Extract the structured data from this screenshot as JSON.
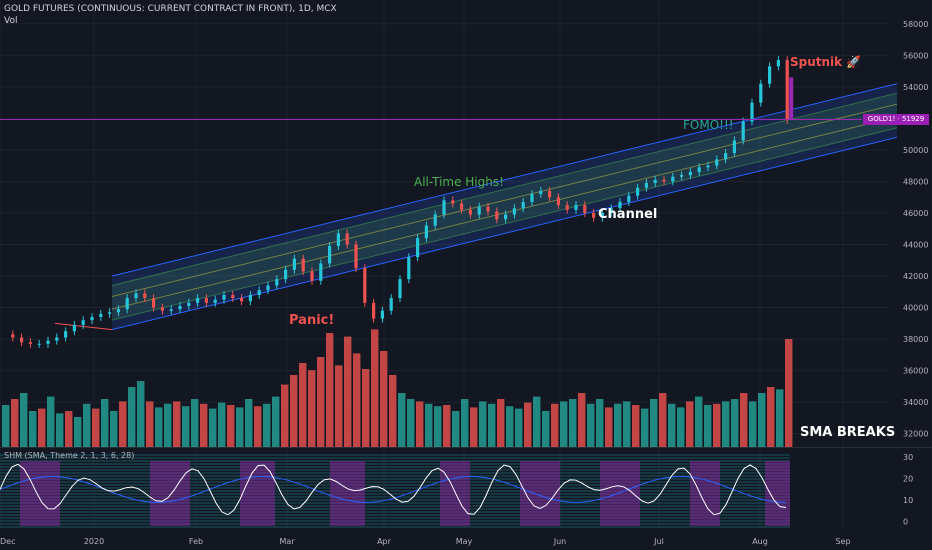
{
  "header": {
    "title": "GOLD FUTURES (CONTINUOUS: CURRENT CONTRACT IN FRONT), 1D, MCX",
    "vol_label": "Vol",
    "indicator_label": "SHM (SMA, Theme 2, 1, 3, 6, 28)"
  },
  "price_tag": {
    "text": "GOLD1! · 51929",
    "color": "#9c1fb5"
  },
  "annotations": {
    "panic": "Panic!",
    "all_time_highs": "All-Time Highs!",
    "channel": "Channel",
    "fomo": "FOMO!!!",
    "sputnik": "Sputnik 🚀",
    "sma_breaks": "SMA BREAKS"
  },
  "colors": {
    "background": "#131722",
    "bull": "#26c6da",
    "bear": "#ef5350",
    "highlight": "#9c27b0",
    "vol_bull": "#26a69a",
    "vol_bear": "#ef5350",
    "channel_edge": "#2962ff"
  },
  "chart_data": [
    {
      "type": "candlestick",
      "title": "GOLD FUTURES (CONTINUOUS: CURRENT CONTRACT IN FRONT), 1D, MCX",
      "x_ticks": [
        "Dec",
        "2020",
        "Feb",
        "Mar",
        "Apr",
        "May",
        "Jun",
        "Jul",
        "Aug",
        "Sep"
      ],
      "y_ticks": [
        32000,
        34000,
        36000,
        38000,
        40000,
        42000,
        44000,
        46000,
        48000,
        50000,
        52000,
        54000,
        56000,
        58000
      ],
      "ylim": [
        31000,
        59000
      ],
      "close_series": [
        [
          0,
          38300
        ],
        [
          4,
          38100
        ],
        [
          8,
          37800
        ],
        [
          12,
          37700
        ],
        [
          16,
          37700
        ],
        [
          20,
          37900
        ],
        [
          24,
          38100
        ],
        [
          28,
          38500
        ],
        [
          32,
          38900
        ],
        [
          36,
          39200
        ],
        [
          40,
          39400
        ],
        [
          44,
          39600
        ],
        [
          48,
          39700
        ],
        [
          52,
          39900
        ],
        [
          56,
          40600
        ],
        [
          60,
          40900
        ],
        [
          64,
          40600
        ],
        [
          68,
          40000
        ],
        [
          72,
          39800
        ],
        [
          76,
          39900
        ],
        [
          80,
          40100
        ],
        [
          84,
          40300
        ],
        [
          88,
          40600
        ],
        [
          92,
          40300
        ],
        [
          96,
          40500
        ],
        [
          100,
          40800
        ],
        [
          104,
          40600
        ],
        [
          108,
          40400
        ],
        [
          112,
          40800
        ],
        [
          116,
          41100
        ],
        [
          120,
          41400
        ],
        [
          124,
          41800
        ],
        [
          128,
          42400
        ],
        [
          132,
          43100
        ],
        [
          136,
          42300
        ],
        [
          140,
          41700
        ],
        [
          144,
          42800
        ],
        [
          148,
          43900
        ],
        [
          152,
          44700
        ],
        [
          156,
          44000
        ],
        [
          160,
          42500
        ],
        [
          164,
          40300
        ],
        [
          168,
          39300
        ],
        [
          172,
          39800
        ],
        [
          176,
          40600
        ],
        [
          180,
          41800
        ],
        [
          184,
          43200
        ],
        [
          188,
          44400
        ],
        [
          192,
          45200
        ],
        [
          196,
          45900
        ],
        [
          200,
          46800
        ],
        [
          204,
          46600
        ],
        [
          208,
          46200
        ],
        [
          212,
          45900
        ],
        [
          216,
          46400
        ],
        [
          220,
          46100
        ],
        [
          224,
          45600
        ],
        [
          228,
          45900
        ],
        [
          232,
          46300
        ],
        [
          236,
          46700
        ],
        [
          240,
          47200
        ],
        [
          244,
          47400
        ],
        [
          248,
          47000
        ],
        [
          252,
          46500
        ],
        [
          256,
          46200
        ],
        [
          260,
          46500
        ],
        [
          264,
          46000
        ],
        [
          268,
          45700
        ],
        [
          272,
          46000
        ],
        [
          276,
          46300
        ],
        [
          280,
          46700
        ],
        [
          284,
          47100
        ],
        [
          288,
          47600
        ],
        [
          292,
          47900
        ],
        [
          296,
          48100
        ],
        [
          300,
          48000
        ],
        [
          304,
          48300
        ],
        [
          308,
          48400
        ],
        [
          312,
          48600
        ],
        [
          316,
          48900
        ],
        [
          320,
          49000
        ],
        [
          324,
          49400
        ],
        [
          328,
          49800
        ],
        [
          332,
          50600
        ],
        [
          336,
          51800
        ],
        [
          340,
          53000
        ],
        [
          344,
          54200
        ],
        [
          348,
          55300
        ],
        [
          352,
          55700
        ],
        [
          356,
          51900
        ]
      ],
      "highlighted_drop": {
        "x": 356,
        "open": 54600,
        "close": 51900
      },
      "channel": {
        "start": [
          24,
          40300
        ],
        "end": [
          356,
          51000
        ],
        "offsets": [
          -1700,
          -1100,
          -400,
          400,
          1100,
          1700
        ]
      },
      "annotations": [
        "Panic!",
        "All-Time Highs!",
        "Channel",
        "FOMO!!!",
        "Sputnik 🚀"
      ],
      "last_price": 51929
    },
    {
      "type": "bar",
      "series_name": "Vol",
      "description_source": "volume histogram",
      "x_ticks": [
        "Dec",
        "2020",
        "Feb",
        "Mar",
        "Apr",
        "May",
        "Jun",
        "Jul",
        "Aug",
        "Sep"
      ],
      "values_relative": [
        0.35,
        0.4,
        0.45,
        0.3,
        0.32,
        0.42,
        0.28,
        0.3,
        0.25,
        0.36,
        0.32,
        0.4,
        0.3,
        0.38,
        0.5,
        0.55,
        0.38,
        0.33,
        0.36,
        0.38,
        0.34,
        0.4,
        0.36,
        0.32,
        0.37,
        0.35,
        0.33,
        0.4,
        0.34,
        0.36,
        0.42,
        0.52,
        0.6,
        0.7,
        0.64,
        0.75,
        0.95,
        0.68,
        0.92,
        0.78,
        0.65,
        0.98,
        0.8,
        0.6,
        0.45,
        0.4,
        0.38,
        0.36,
        0.34,
        0.35,
        0.3,
        0.4,
        0.33,
        0.38,
        0.36,
        0.4,
        0.34,
        0.32,
        0.37,
        0.42,
        0.3,
        0.36,
        0.38,
        0.4,
        0.45,
        0.36,
        0.4,
        0.33,
        0.36,
        0.38,
        0.35,
        0.32,
        0.4,
        0.45,
        0.36,
        0.33,
        0.38,
        0.42,
        0.35,
        0.36,
        0.38,
        0.4,
        0.45,
        0.38,
        0.45,
        0.5,
        0.48,
        0.9
      ],
      "label": "SMA BREAKS"
    },
    {
      "type": "line",
      "title": "SHM (SMA, Theme 2, 1, 3, 6, 28)",
      "y_ticks": [
        0,
        10,
        20,
        30
      ],
      "ylim": [
        -2,
        31
      ]
    }
  ]
}
